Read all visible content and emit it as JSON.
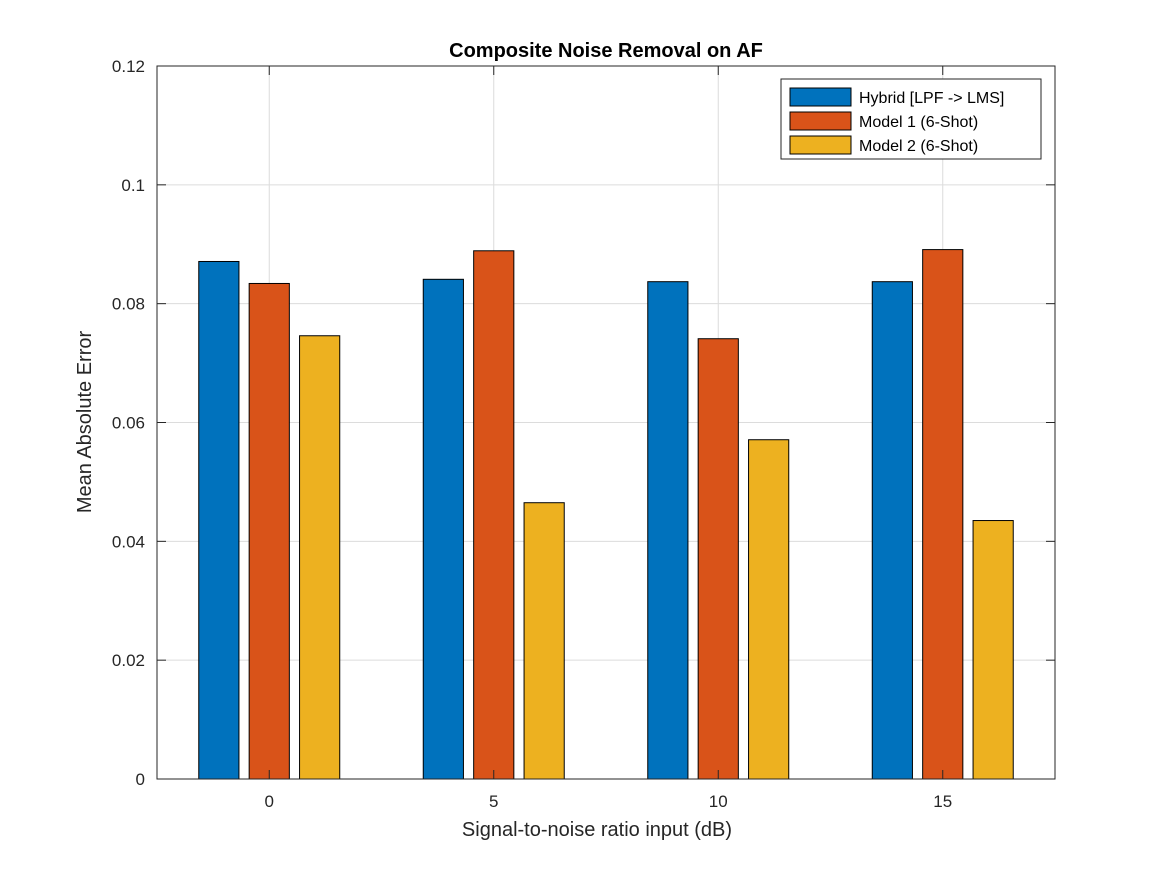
{
  "chart_data": {
    "type": "bar",
    "title": "Composite Noise Removal on AF",
    "xlabel": "Signal-to-noise ratio input (dB)",
    "ylabel": "Mean Absolute Error",
    "categories": [
      "0",
      "5",
      "10",
      "15"
    ],
    "ylim": [
      0,
      0.12
    ],
    "yticks": [
      "0",
      "0.02",
      "0.04",
      "0.06",
      "0.08",
      "0.1",
      "0.12"
    ],
    "grid": true,
    "legend_position": "top-right",
    "series": [
      {
        "name": "Hybrid [LPF -> LMS]",
        "color": "#0072BD",
        "values": [
          0.0871,
          0.0841,
          0.0837,
          0.0837
        ]
      },
      {
        "name": "Model 1 (6-Shot)",
        "color": "#D95319",
        "values": [
          0.0834,
          0.0889,
          0.0741,
          0.0891
        ]
      },
      {
        "name": "Model 2 (6-Shot)",
        "color": "#EDB120",
        "values": [
          0.0746,
          0.0465,
          0.0571,
          0.0435
        ]
      }
    ]
  }
}
